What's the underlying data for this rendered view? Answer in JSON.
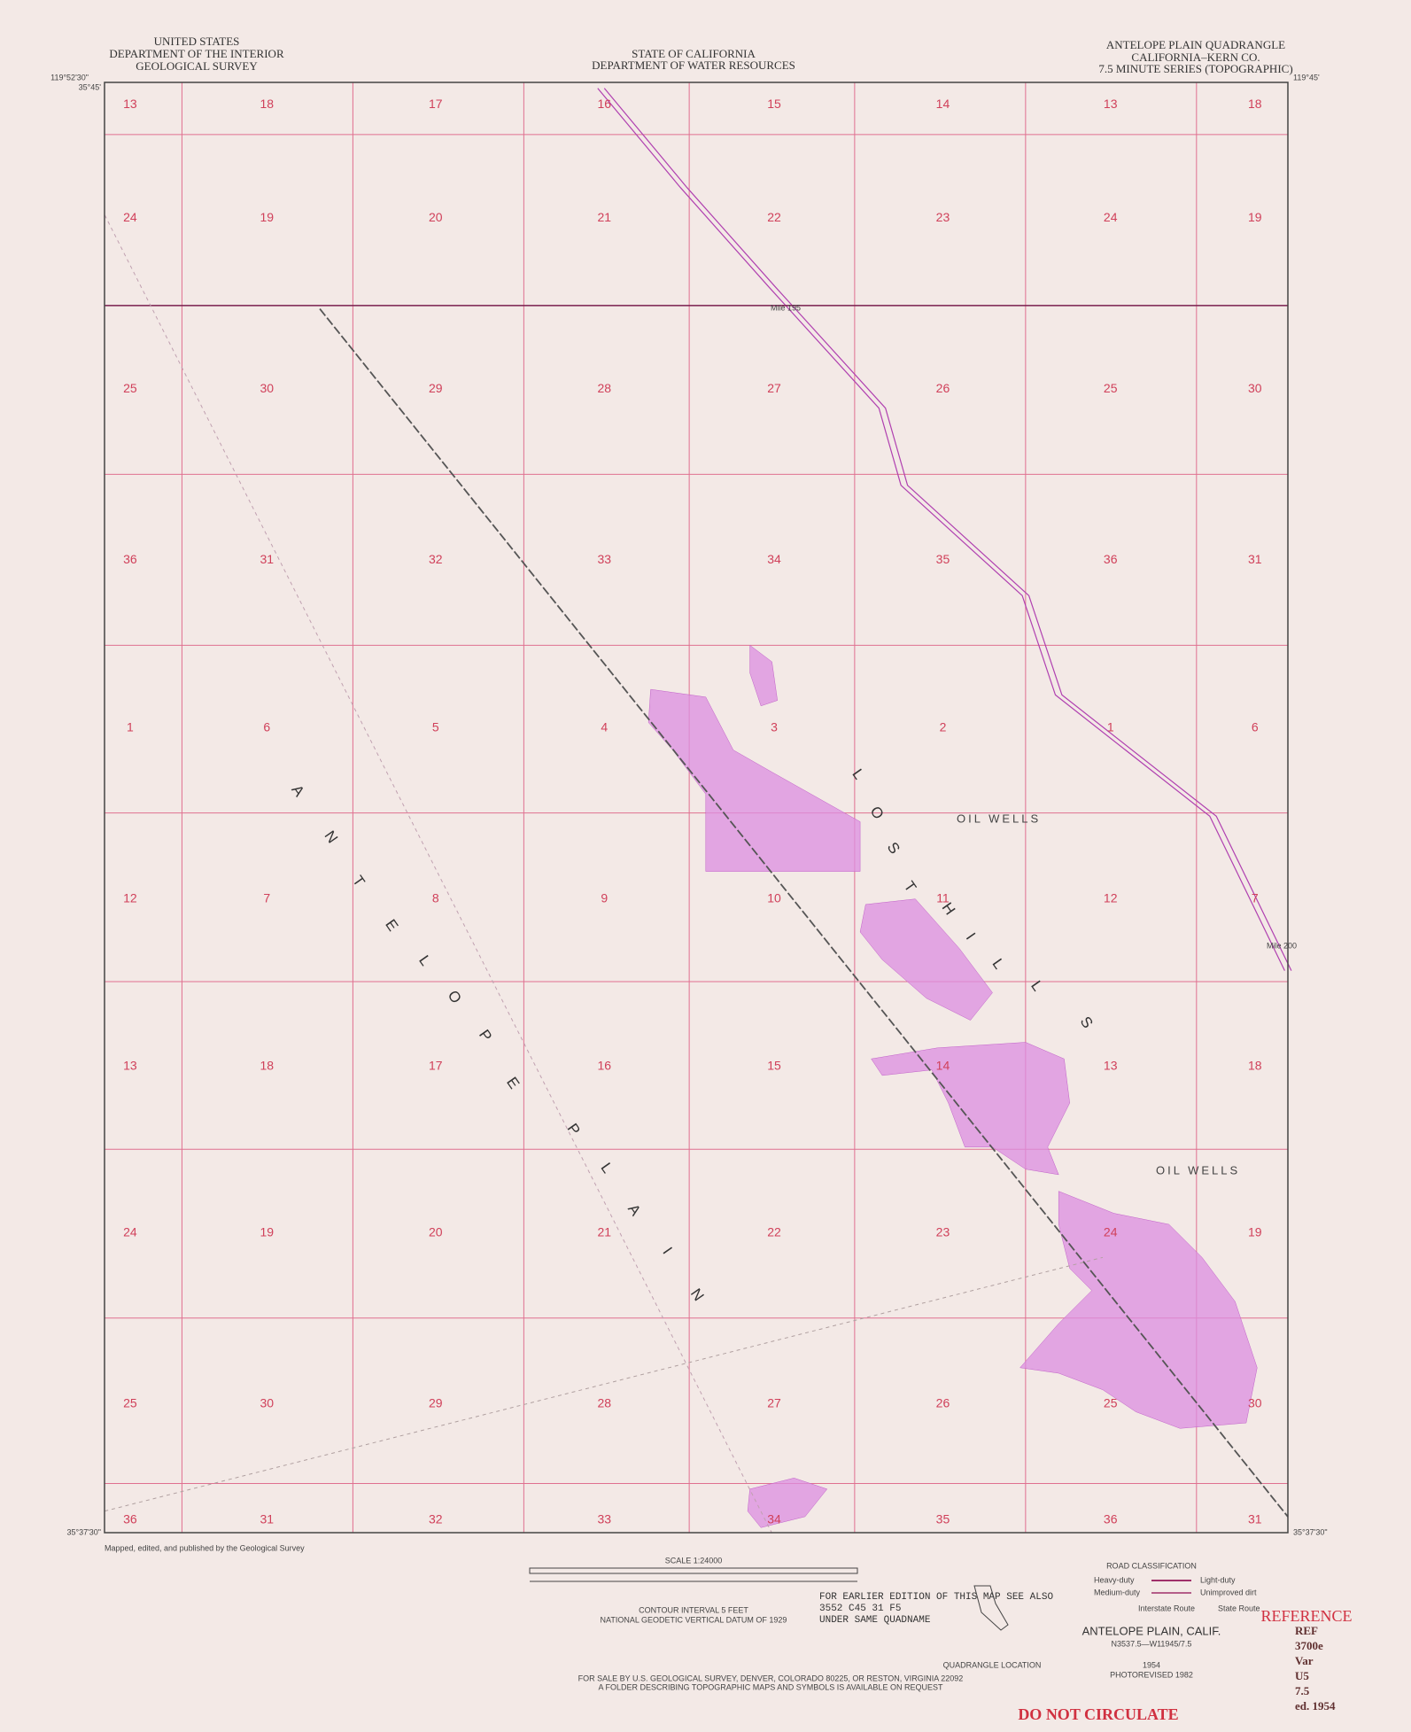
{
  "header": {
    "left": [
      "UNITED STATES",
      "DEPARTMENT OF THE INTERIOR",
      "GEOLOGICAL SURVEY"
    ],
    "center": [
      "STATE OF CALIFORNIA",
      "DEPARTMENT OF WATER RESOURCES"
    ],
    "right": [
      "ANTELOPE PLAIN QUADRANGLE",
      "CALIFORNIA–KERN CO.",
      "7.5 MINUTE SERIES (TOPOGRAPHIC)"
    ]
  },
  "corners": {
    "top_left_lon": "119°52'30\"",
    "top_left_lat": "35°45'",
    "top_right_lon": "119°45'",
    "bottom_left_lat": "35°37'30\"",
    "bottom_right_lat": "35°37'30\""
  },
  "sections": {
    "rows": [
      [
        "13",
        "18",
        "17",
        "16",
        "15",
        "14",
        "13",
        "18"
      ],
      [
        "24",
        "19",
        "20",
        "21",
        "22",
        "23",
        "24",
        "19"
      ],
      [
        "25",
        "30",
        "29",
        "28",
        "27",
        "26",
        "25",
        "30"
      ],
      [
        "36",
        "31",
        "32",
        "33",
        "34",
        "35",
        "36",
        "31"
      ],
      [
        "1",
        "6",
        "5",
        "4",
        "3",
        "2",
        "1",
        "6"
      ],
      [
        "12",
        "7",
        "8",
        "9",
        "10",
        "11",
        "12",
        "7"
      ],
      [
        "13",
        "18",
        "17",
        "16",
        "15",
        "14",
        "13",
        "18"
      ],
      [
        "24",
        "19",
        "20",
        "21",
        "22",
        "23",
        "24",
        "19"
      ],
      [
        "25",
        "30",
        "29",
        "28",
        "27",
        "26",
        "25",
        "30"
      ],
      [
        "36",
        "31",
        "32",
        "33",
        "34",
        "35",
        "36",
        "31"
      ]
    ]
  },
  "place_labels": {
    "antelope_plain": [
      "A",
      "N",
      "T",
      "E",
      "L",
      "O",
      "P",
      "E",
      "P",
      "L",
      "A",
      "I",
      "N"
    ],
    "lost_hills": [
      "L",
      "O",
      "S",
      "T",
      "H",
      "I",
      "L",
      "L",
      "S"
    ],
    "oil_wells_1": "OIL WELLS",
    "oil_wells_2": "OIL WELLS",
    "mile_1": "Mile 195",
    "mile_2": "Mile 200"
  },
  "footer": {
    "credit": "Mapped, edited, and published by the Geological Survey",
    "scale": "SCALE 1:24000",
    "contour": "CONTOUR INTERVAL 5 FEET",
    "datum": "NATIONAL GEODETIC VERTICAL DATUM OF 1929",
    "sale": "FOR SALE BY U.S. GEOLOGICAL SURVEY, DENVER, COLORADO 80225, OR RESTON, VIRGINIA 22092",
    "folder": "A FOLDER DESCRIBING TOPOGRAPHIC MAPS AND SYMBOLS IS AVAILABLE ON REQUEST",
    "earlier": [
      "FOR EARLIER EDITION OF THIS MAP SEE ALSO",
      "3552 C45 31 F5",
      "UNDER SAME QUADNAME"
    ],
    "road_title": "ROAD CLASSIFICATION",
    "roads": [
      "Heavy-duty",
      "Light-duty",
      "Medium-duty",
      "Unimproved dirt",
      "Interstate Route",
      "State Route"
    ],
    "quad_location": "QUADRANGLE LOCATION",
    "name": "ANTELOPE PLAIN, CALIF.",
    "code": "N3537.5—W11945/7.5",
    "year": "1954",
    "photorevised": "PHOTOREVISED 1982",
    "reference": "REFERENCE",
    "do_not_circulate": "DO NOT CIRCULATE",
    "stamp": [
      "REF",
      "3700e",
      "Var",
      "U5",
      "7.5",
      "ed. 1954"
    ]
  }
}
